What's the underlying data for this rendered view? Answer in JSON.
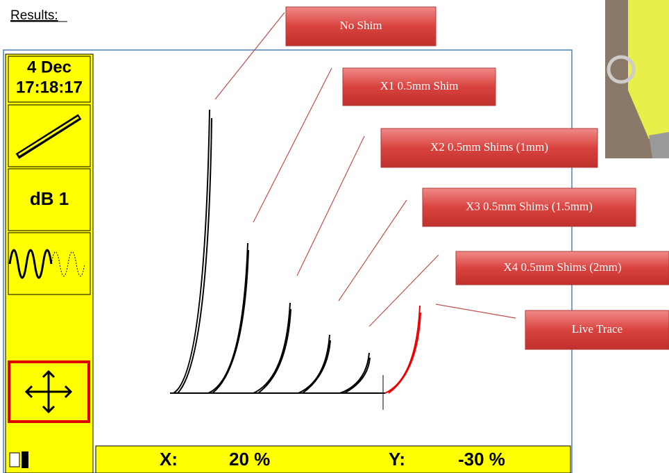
{
  "heading": "Results:",
  "screen": {
    "date": "4 Dec",
    "time": "17:18:17",
    "gain": "dB 1",
    "status": {
      "x_label": "X:",
      "x_value": "20 %",
      "y_label": "Y:",
      "y_value": "-30 %"
    }
  },
  "callouts": [
    "No Shim",
    "X1 0.5mm Shim",
    "X2 0.5mm Shims (1mm)",
    "X3 0.5mm Shims (1.5mm)",
    "X4 0.5mm Shims (2mm)",
    "Live Trace"
  ]
}
